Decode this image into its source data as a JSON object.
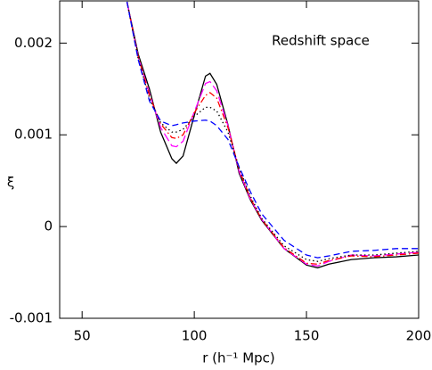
{
  "chart_data": {
    "type": "line",
    "annotation": "Redshift space",
    "x_label": "r (h⁻¹ Mpc)",
    "y_label": "ξ",
    "x": [
      70,
      75,
      80,
      85,
      90,
      92,
      95,
      100,
      105,
      107,
      110,
      115,
      120,
      125,
      130,
      140,
      150,
      155,
      160,
      170,
      180,
      190,
      200
    ],
    "series": [
      {
        "color": "#000000",
        "linestyle": "solid",
        "values": [
          0.00245,
          0.00188,
          0.0015,
          0.00103,
          0.00074,
          0.00069,
          0.00077,
          0.00121,
          0.00164,
          0.00167,
          0.00155,
          0.00111,
          0.00058,
          0.00029,
          7e-05,
          -0.00024,
          -0.00042,
          -0.00045,
          -0.00041,
          -0.00036,
          -0.00034,
          -0.00033,
          -0.00031
        ]
      },
      {
        "color": "#ff00ff",
        "linestyle": "longdash",
        "values": [
          0.00245,
          0.00185,
          0.00145,
          0.00108,
          0.00088,
          0.00087,
          0.00093,
          0.00125,
          0.00156,
          0.00158,
          0.00148,
          0.0011,
          0.0006,
          0.0003,
          8e-05,
          -0.00024,
          -0.00041,
          -0.00043,
          -0.00038,
          -0.00031,
          -0.00032,
          -0.0003,
          -0.00028
        ]
      },
      {
        "color": "#ff0000",
        "linestyle": "dashdot",
        "values": [
          0.00245,
          0.00185,
          0.00143,
          0.00112,
          0.00097,
          0.00096,
          0.001,
          0.00124,
          0.00143,
          0.00146,
          0.0014,
          0.00108,
          0.00062,
          0.00031,
          8e-05,
          -0.00023,
          -0.0004,
          -0.00041,
          -0.00037,
          -0.00032,
          -0.00033,
          -0.00031,
          -0.00029
        ]
      },
      {
        "color": "#000000",
        "linestyle": "dotted",
        "values": [
          0.00245,
          0.00183,
          0.0014,
          0.00113,
          0.00103,
          0.00103,
          0.00106,
          0.0012,
          0.0013,
          0.0013,
          0.00126,
          0.00103,
          0.00064,
          0.00033,
          9e-05,
          -0.00021,
          -0.00036,
          -0.00038,
          -0.00035,
          -0.00031,
          -0.00031,
          -0.00029,
          -0.00027
        ]
      },
      {
        "color": "#0000ff",
        "linestyle": "dashed",
        "values": [
          0.00245,
          0.00182,
          0.00137,
          0.00115,
          0.0011,
          0.00111,
          0.00113,
          0.00115,
          0.00116,
          0.00115,
          0.0011,
          0.00095,
          0.00065,
          0.00038,
          0.00014,
          -0.00015,
          -0.00031,
          -0.00034,
          -0.00032,
          -0.00027,
          -0.00026,
          -0.00024,
          -0.00024
        ]
      }
    ],
    "xlim": [
      40,
      200
    ],
    "ylim": [
      -0.001,
      0.00246
    ],
    "xticks": [
      50,
      100,
      150,
      200
    ],
    "yticks": [
      -0.001,
      0,
      0.001,
      0.002
    ]
  }
}
